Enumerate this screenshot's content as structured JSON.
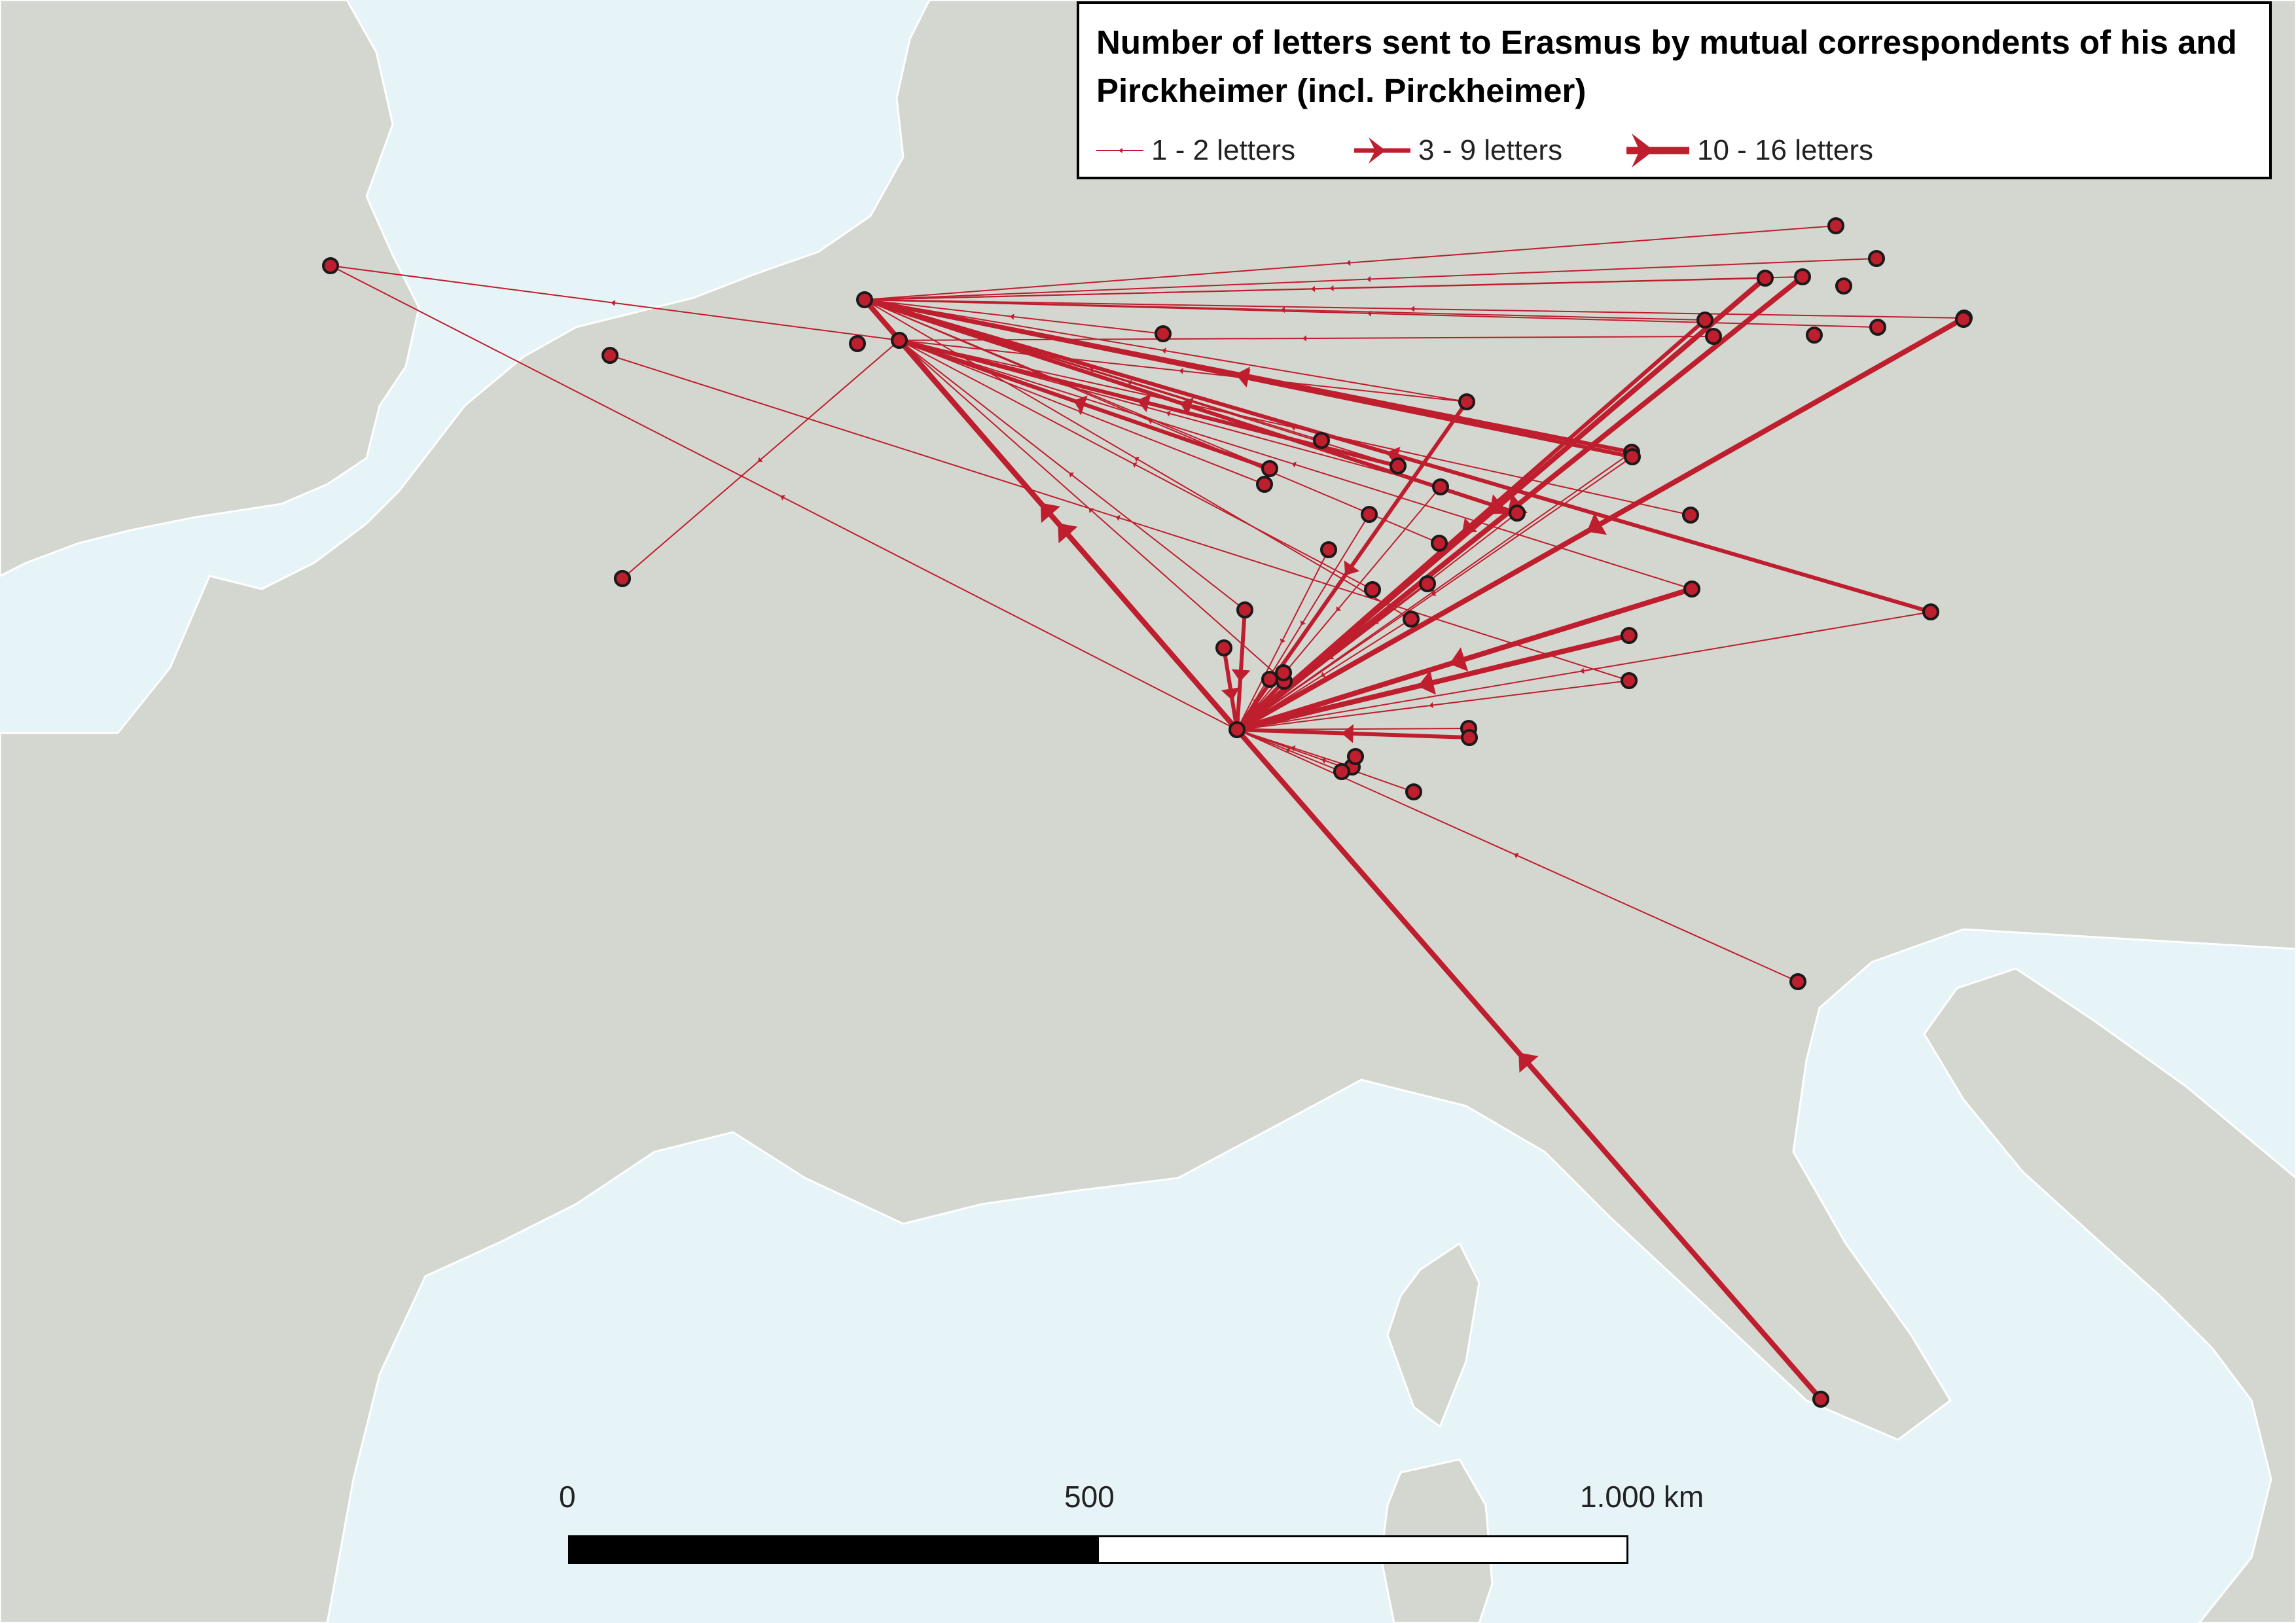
{
  "legend": {
    "title": "Number of letters sent to Erasmus by mutual correspondents of his and Pirckheimer (incl. Pirckheimer)",
    "items": [
      {
        "label": "1 - 2 letters",
        "weight": "thin"
      },
      {
        "label": "3 - 9 letters",
        "weight": "medium"
      },
      {
        "label": "10 - 16 letters",
        "weight": "thick"
      }
    ]
  },
  "scale_bar": {
    "labels": [
      "0",
      "500",
      "1.000 km"
    ]
  },
  "colors": {
    "sea": "#e6f4f8",
    "land": "#d4d7d0",
    "land_border": "#ffffff",
    "flow": "#be1e2d",
    "node_fill": "#be1e2d",
    "node_stroke": "#1a1a1a"
  }
}
